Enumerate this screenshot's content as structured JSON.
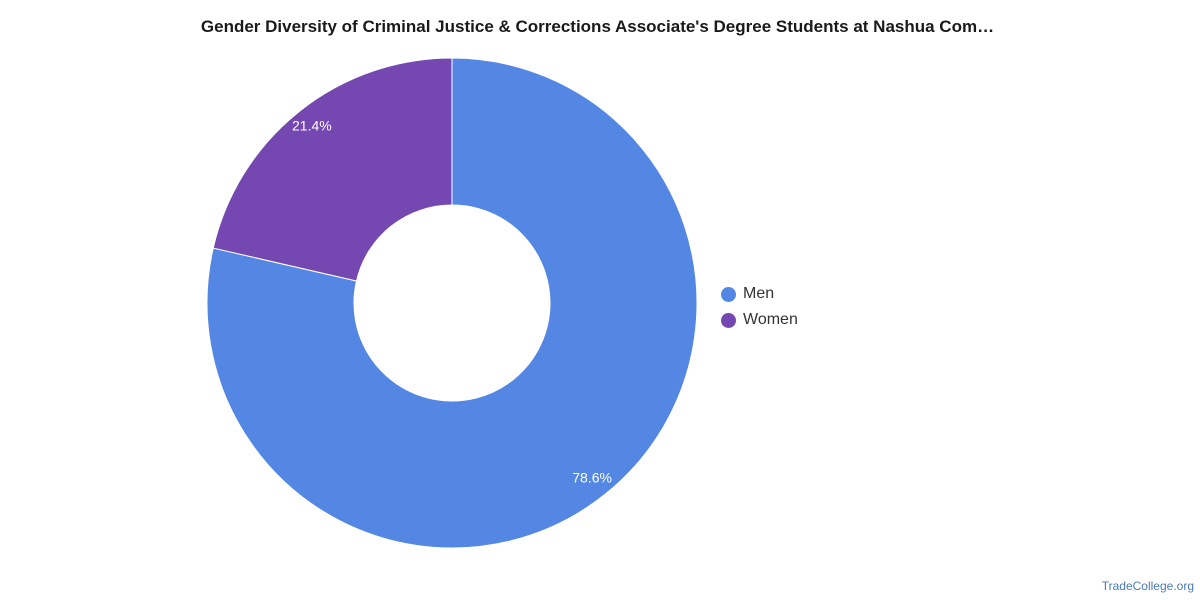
{
  "chart_data": {
    "type": "pie",
    "donut": true,
    "title": "Gender Diversity of Criminal Justice & Corrections Associate's Degree Students at Nashua Com…",
    "categories": [
      "Men",
      "Women"
    ],
    "values": [
      78.6,
      21.4
    ],
    "labels": [
      "78.6%",
      "21.4%"
    ],
    "colors": [
      "#5387e3",
      "#7447b1"
    ],
    "legend_position": "right"
  },
  "watermark": "TradeCollege.org"
}
